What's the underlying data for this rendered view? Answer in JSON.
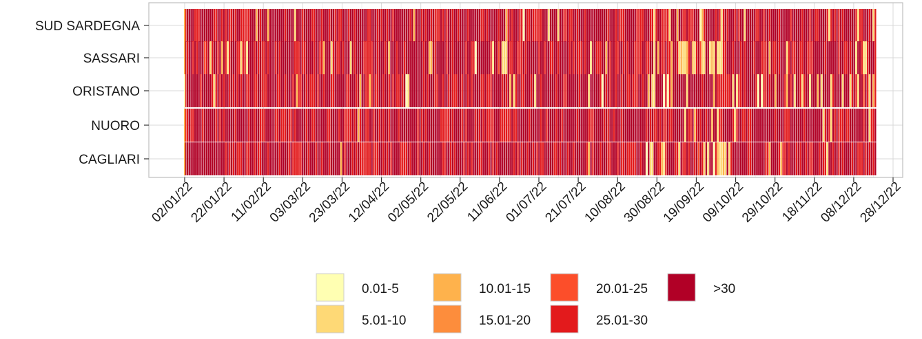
{
  "chart_data": {
    "type": "heatmap",
    "title": "",
    "xlabel": "",
    "ylabel": "",
    "rows": [
      "SUD SARDEGNA",
      "SASSARI",
      "ORISTANO",
      "NUORO",
      "CAGLIARI"
    ],
    "x_tick_labels": [
      "02/01/22",
      "22/01/22",
      "11/02/22",
      "03/03/22",
      "23/03/22",
      "12/04/22",
      "02/05/22",
      "22/05/22",
      "11/06/22",
      "01/07/22",
      "21/07/22",
      "10/08/22",
      "30/08/22",
      "19/09/22",
      "09/10/22",
      "29/10/22",
      "18/11/22",
      "08/12/22",
      "28/12/22"
    ],
    "date_range": [
      "2022-01-02",
      "2022-12-28"
    ],
    "legend": {
      "position": "bottom",
      "categories": [
        "0.01-5",
        "5.01-10",
        "10.01-15",
        "15.01-20",
        "20.01-25",
        "25.01-30",
        ">30"
      ],
      "colors": [
        "#FFFFB2",
        "#FED976",
        "#FEB24C",
        "#FD8D3C",
        "#FC4E2A",
        "#E31A1C",
        "#B10026"
      ]
    },
    "dominant_category": ">30",
    "lower_values_notes": [
      "Scattered lighter (0.01-5, 5.01-10) cells appear across all provinces, concentrated between late August and October 2022",
      "SASSARI and CAGLIARI show the most lighter cells around September 2022"
    ],
    "grid": true,
    "background": "#FFFFFF",
    "gridline_color": "#D9D9D9"
  }
}
